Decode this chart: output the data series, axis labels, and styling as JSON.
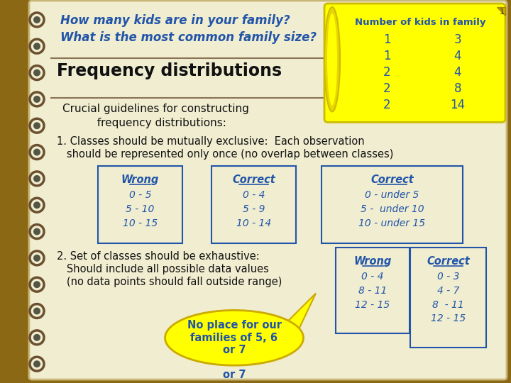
{
  "bg_outer": "#8B6914",
  "bg_inner": "#F0EDD0",
  "blue": "#2255AA",
  "dark": "#1A1A1A",
  "yellow": "#FFFF00",
  "title_text1": "How many kids are in your family?",
  "title_text2": "What is the most common family size?",
  "freq_dist_label": "Frequency distributions",
  "crucial_text1": "Crucial guidelines for constructing",
  "crucial_text2": "          frequency distributions:",
  "point1_text1": "1. Classes should be mutually exclusive:  Each observation",
  "point1_text2": "   should be represented only once (no overlap between classes)",
  "point2_text1": "2. Set of classes should be exhaustive:",
  "point2_text2": "   Should include all possible data values",
  "point2_text3": "   (no data points should fall outside range)",
  "table_title": "Number of kids in family",
  "table_col1": [
    1,
    1,
    2,
    2,
    2
  ],
  "table_col2": [
    3,
    4,
    4,
    8,
    14
  ],
  "wrong1_label": "Wrong",
  "wrong1_data": [
    "0 - 5",
    "5 - 10",
    "10 - 15"
  ],
  "correct1_label": "Correct",
  "correct1_data": [
    "0 - 4",
    "5 - 9",
    "10 - 14"
  ],
  "correct2_label": "Correct",
  "correct2_data": [
    "0 - under 5",
    "5 -  under 10",
    "10 - under 15"
  ],
  "wrong2_label": "Wrong",
  "wrong2_data": [
    "0 - 4",
    "8 - 11",
    "12 - 15"
  ],
  "correct3_label": "Correct",
  "correct3_data": [
    "0 - 3",
    "4 - 7",
    "8  - 11",
    "12 - 15"
  ],
  "bubble_text": "No place for our\nfamilies of 5, 6\nor 7"
}
